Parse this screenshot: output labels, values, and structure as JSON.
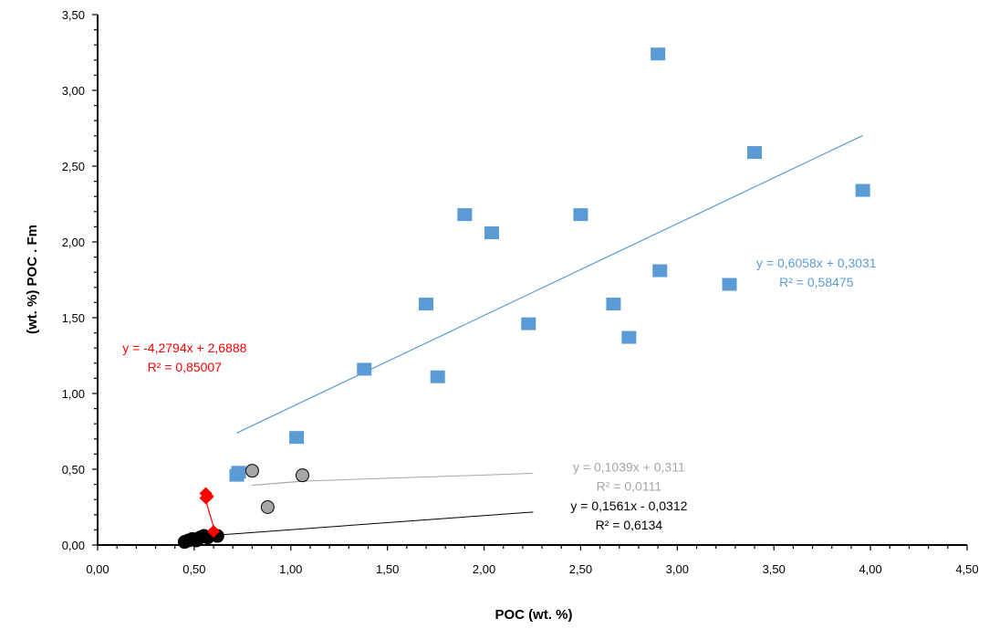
{
  "chart_data": {
    "type": "scatter",
    "title": "",
    "xlabel": "POC (wt. %)",
    "ylabel": "(wt. %) POC . Fm",
    "xlim": [
      0,
      4.5
    ],
    "ylim": [
      0,
      3.5
    ],
    "xticks": [
      0,
      0.5,
      1,
      1.5,
      2,
      2.5,
      3,
      3.5,
      4,
      4.5
    ],
    "xtick_labels": [
      "0,00",
      "0,50",
      "1,00",
      "1,50",
      "2,00",
      "2,50",
      "3,00",
      "3,50",
      "4,00",
      "4,50"
    ],
    "yticks": [
      0,
      0.5,
      1,
      1.5,
      2,
      2.5,
      3,
      3.5
    ],
    "ytick_labels": [
      "0,00",
      "0,50",
      "1,00",
      "1,50",
      "2,00",
      "2,50",
      "3,00",
      "3,50"
    ],
    "grid": false,
    "legend": "none",
    "series": [
      {
        "marker": "square",
        "color": "#5b9bd5",
        "points": [
          [
            0.72,
            0.46
          ],
          [
            0.73,
            0.48
          ],
          [
            1.03,
            0.71
          ],
          [
            1.38,
            1.16
          ],
          [
            1.7,
            1.59
          ],
          [
            1.76,
            1.11
          ],
          [
            1.9,
            2.18
          ],
          [
            2.04,
            2.06
          ],
          [
            2.23,
            1.46
          ],
          [
            2.5,
            2.18
          ],
          [
            2.67,
            1.59
          ],
          [
            2.75,
            1.37
          ],
          [
            2.9,
            3.24
          ],
          [
            2.91,
            1.81
          ],
          [
            3.27,
            1.72
          ],
          [
            3.4,
            2.59
          ],
          [
            3.96,
            2.34
          ]
        ],
        "trendline": {
          "slope": 0.6058,
          "intercept": 0.3031,
          "x_range": [
            0.72,
            3.96
          ]
        },
        "equation": "y = 0,6058x + 0,3031",
        "r2": "R² = 0,58475"
      },
      {
        "marker": "circle",
        "color": "#a6a6a6",
        "points": [
          [
            0.8,
            0.49
          ],
          [
            0.88,
            0.25
          ],
          [
            1.06,
            0.46
          ]
        ],
        "trendline": {
          "slope": 0.1039,
          "intercept": 0.311,
          "x_range": [
            0.8,
            1.06
          ]
        },
        "equation": "y = 0,1039x + 0,311",
        "r2": "R² = 0,0111"
      },
      {
        "marker": "circle",
        "color": "#000000",
        "points": [
          [
            0.45,
            0.02
          ],
          [
            0.47,
            0.03
          ],
          [
            0.49,
            0.04
          ],
          [
            0.51,
            0.03
          ],
          [
            0.53,
            0.05
          ],
          [
            0.55,
            0.06
          ],
          [
            0.57,
            0.05
          ],
          [
            0.6,
            0.07
          ],
          [
            0.62,
            0.06
          ]
        ],
        "trendline": {
          "slope": 0.1561,
          "intercept": -0.0312,
          "x_range": [
            0.45,
            0.62
          ]
        },
        "equation": "y = 0,1561x - 0,0312",
        "r2": "R² = 0,6134"
      },
      {
        "marker": "diamond",
        "color": "#ff0000",
        "points": [
          [
            0.56,
            0.34
          ],
          [
            0.56,
            0.31
          ],
          [
            0.57,
            0.32
          ],
          [
            0.6,
            0.09
          ]
        ],
        "trendline": {
          "slope": -4.2794,
          "intercept": 2.6888,
          "x_range": [
            0.56,
            0.61
          ]
        },
        "equation": "y = -4,2794x + 2,6888",
        "r2": "R² = 0,85007"
      }
    ],
    "annotations": [
      {
        "series": 0,
        "anchor": [
          3.72,
          1.83
        ],
        "align": "middle"
      },
      {
        "series": 1,
        "anchor": [
          2.75,
          0.485
        ],
        "align": "middle"
      },
      {
        "series": 2,
        "anchor": [
          2.75,
          0.23
        ],
        "align": "middle"
      },
      {
        "series": 3,
        "anchor": [
          0.45,
          1.27
        ],
        "align": "middle"
      }
    ]
  }
}
